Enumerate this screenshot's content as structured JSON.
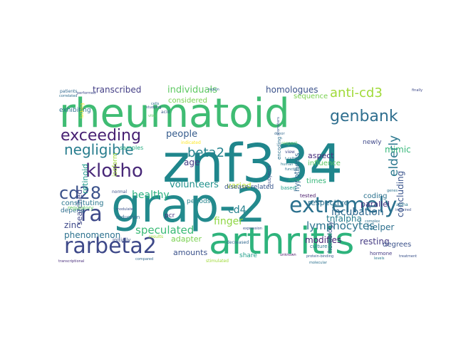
{
  "words": [
    {
      "text": "znf334",
      "color": "#1f868c"
    },
    {
      "text": "rheumatoid",
      "color": "#3fbc73"
    },
    {
      "text": "grap-2",
      "color": "#238a8d"
    },
    {
      "text": "arthritis",
      "color": "#2eb37c"
    },
    {
      "text": "extremely",
      "color": "#2c718e"
    },
    {
      "text": "rarbeta2",
      "color": "#3e4989"
    },
    {
      "text": "exceeding",
      "color": "#482173"
    },
    {
      "text": "klotho",
      "color": "#482878"
    },
    {
      "text": "genbank",
      "color": "#2e6e8e"
    },
    {
      "text": "negligible",
      "color": "#287d8e"
    },
    {
      "text": "anti-cd3",
      "color": "#a0da39"
    },
    {
      "text": "cd28",
      "color": "#3b528b"
    },
    {
      "text": "ra",
      "color": "#3e4989"
    },
    {
      "text": "beta2",
      "color": "#25838e"
    },
    {
      "text": "speculated",
      "color": "#3aba76"
    },
    {
      "text": "lymphocytes",
      "color": "#2c728e"
    },
    {
      "text": "transcribed",
      "color": "#433e85"
    },
    {
      "text": "individuals",
      "color": "#5ec962"
    },
    {
      "text": "homologues",
      "color": "#3b528b"
    },
    {
      "text": "people",
      "color": "#365c8d"
    },
    {
      "text": "healthy",
      "color": "#29af7f"
    },
    {
      "text": "elderly",
      "color": "#2a788e"
    },
    {
      "text": "volunteers",
      "color": "#21918c"
    },
    {
      "text": "concluding",
      "color": "#3a548c"
    },
    {
      "text": "resting",
      "color": "#443a83"
    },
    {
      "text": "tnfalpha",
      "color": "#287c8e"
    },
    {
      "text": "finger",
      "color": "#8fd744"
    },
    {
      "text": "incubation",
      "color": "#31688e"
    },
    {
      "text": "cd4",
      "color": "#26818e"
    },
    {
      "text": "mimic",
      "color": "#35b779"
    },
    {
      "text": "zinc",
      "color": "#3e4989"
    },
    {
      "text": "phenomenon",
      "color": "#2c718e"
    },
    {
      "text": "modifies",
      "color": "#482475"
    },
    {
      "text": "varied",
      "color": "#b5de2b"
    },
    {
      "text": "helper",
      "color": "#2d708e"
    },
    {
      "text": "parallel",
      "color": "#46327e"
    },
    {
      "text": "amounts",
      "color": "#3b528b"
    },
    {
      "text": "adapter",
      "color": "#7ad151"
    },
    {
      "text": "age",
      "color": "#443983"
    },
    {
      "text": "searched",
      "color": "#3f4788"
    },
    {
      "text": "retinoid",
      "color": "#1e9b8a"
    },
    {
      "text": "constituting",
      "color": "#2a768e"
    },
    {
      "text": "depend",
      "color": "#2e6e8e"
    },
    {
      "text": "aspect",
      "color": "#472d7b"
    },
    {
      "text": "coding",
      "color": "#2c728e"
    },
    {
      "text": "respective",
      "color": "#2d718e"
    },
    {
      "text": "newly",
      "color": "#3f4889"
    },
    {
      "text": "exhibiting",
      "color": "#2c718e"
    },
    {
      "text": "considered",
      "color": "#7ad151"
    },
    {
      "text": "disease-related",
      "color": "#39568c"
    },
    {
      "text": "sequence",
      "color": "#7ad151"
    },
    {
      "text": "influence",
      "color": "#5ec962"
    },
    {
      "text": "homology",
      "color": "#3b528b"
    },
    {
      "text": "share",
      "color": "#1f9e89"
    },
    {
      "text": "periods",
      "color": "#25848e"
    },
    {
      "text": "degrees",
      "color": "#3b528b"
    },
    {
      "text": "hypothesis",
      "color": "#30688e"
    },
    {
      "text": "times",
      "color": "#35b779"
    },
    {
      "text": "pcr",
      "color": "#46307e"
    },
    {
      "text": "samples",
      "color": "#27ad81"
    },
    {
      "text": "reduction",
      "color": "#31688e"
    },
    {
      "text": "initially",
      "color": "#3b528b"
    },
    {
      "text": "culture",
      "color": "#287c8e"
    },
    {
      "text": "hormone",
      "color": "#443983"
    },
    {
      "text": "tested",
      "color": "#48186a"
    },
    {
      "text": "based",
      "color": "#1f9e89"
    },
    {
      "text": "subjects",
      "color": "#3b528b"
    },
    {
      "text": "encoding",
      "color": "#2d708e"
    },
    {
      "text": "regulatory",
      "color": "#5ec962"
    },
    {
      "text": "patients",
      "color": "#31688e"
    },
    {
      "text": "correlated",
      "color": "#2e6e8e"
    },
    {
      "text": "isoform",
      "color": "#a0da39"
    },
    {
      "text": "alpha",
      "color": "#2a788e"
    },
    {
      "text": "impaired",
      "color": "#3b528b"
    },
    {
      "text": "finally",
      "color": "#3e4989"
    },
    {
      "text": "promoters",
      "color": "#38588c"
    },
    {
      "text": "function",
      "color": "#2d708e"
    },
    {
      "text": "studying",
      "color": "#3b528b"
    },
    {
      "text": "performed",
      "color": "#3e4989"
    },
    {
      "text": "region",
      "color": "#31688e"
    },
    {
      "text": "vitro",
      "color": "#5ec962"
    },
    {
      "text": "human",
      "color": "#2a788e"
    },
    {
      "text": "protein-binding",
      "color": "#38588c"
    },
    {
      "text": "unknown",
      "color": "#481467"
    },
    {
      "text": "compared",
      "color": "#31688e"
    },
    {
      "text": "treatment",
      "color": "#3b528b"
    },
    {
      "text": "molecular",
      "color": "#2c718e"
    },
    {
      "text": "transcriptional",
      "color": "#472c7a"
    },
    {
      "text": "stimulated",
      "color": "#a0da39"
    },
    {
      "text": "levels",
      "color": "#2a788e"
    },
    {
      "text": "decreased",
      "color": "#31688e"
    },
    {
      "text": "expression",
      "color": "#3b528b"
    },
    {
      "text": "lacking",
      "color": "#fde725"
    },
    {
      "text": "complex",
      "color": "#2d708e"
    },
    {
      "text": "view",
      "color": "#3e4989"
    },
    {
      "text": "t-cell",
      "color": "#2a788e"
    },
    {
      "text": "respect",
      "color": "#5ec962"
    },
    {
      "text": "acid",
      "color": "#38588c"
    },
    {
      "text": "modulate",
      "color": "#3b528b"
    },
    {
      "text": "indicated",
      "color": "#fde725"
    },
    {
      "text": "genes",
      "color": "#2c718e"
    },
    {
      "text": "donor",
      "color": "#31688e"
    },
    {
      "text": "results",
      "color": "#a0da39"
    },
    {
      "text": "normal",
      "color": "#3b528b"
    },
    {
      "text": "mrna",
      "color": "#35b779"
    },
    {
      "text": "cells",
      "color": "#2d708e"
    }
  ]
}
